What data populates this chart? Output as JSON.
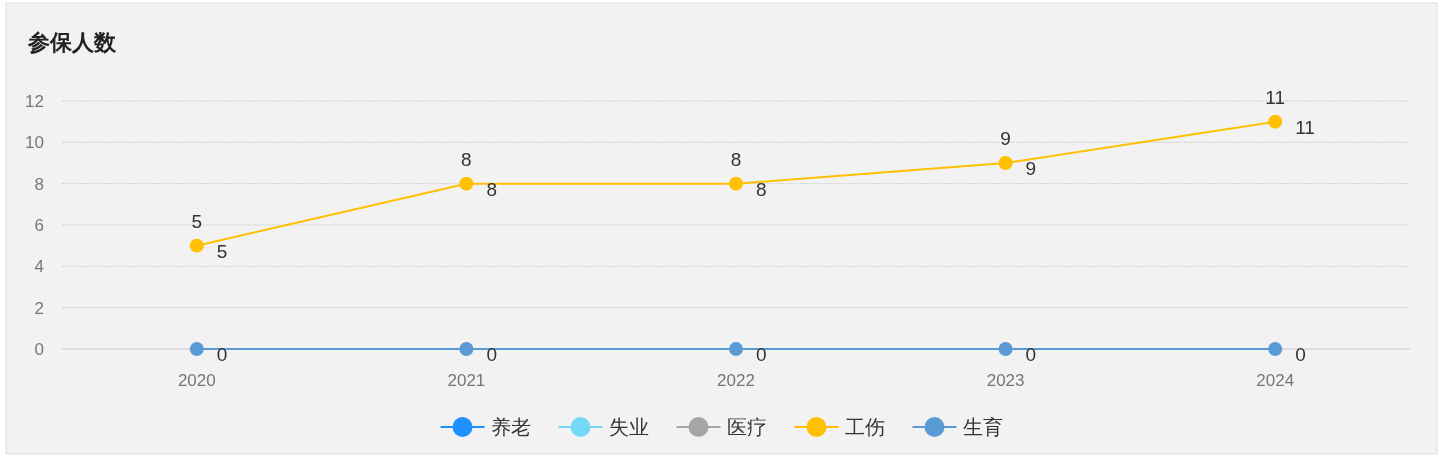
{
  "chart_data": {
    "type": "line",
    "title": "参保人数",
    "categories": [
      "2020",
      "2021",
      "2022",
      "2023",
      "2024"
    ],
    "series": [
      {
        "name": "养老",
        "color": "#1e90ff",
        "values": [
          null,
          null,
          null,
          null,
          null
        ]
      },
      {
        "name": "失业",
        "color": "#73d9f7",
        "values": [
          null,
          null,
          null,
          null,
          null
        ]
      },
      {
        "name": "医疗",
        "color": "#a5a5a5",
        "values": [
          null,
          null,
          null,
          null,
          null
        ]
      },
      {
        "name": "工伤",
        "color": "#ffc000",
        "values": [
          5,
          8,
          8,
          9,
          11
        ],
        "value_labels": [
          "5",
          "8",
          "8",
          "9",
          "11"
        ]
      },
      {
        "name": "生育",
        "color": "#5b9bd5",
        "values": [
          0,
          0,
          0,
          0,
          0
        ],
        "value_labels": [
          "0",
          "0",
          "0",
          "0",
          "0"
        ]
      }
    ],
    "annotations": [
      {
        "text": "5",
        "x": "2020",
        "y": 5
      },
      {
        "text": "8",
        "x": "2021",
        "y": 8
      },
      {
        "text": "8",
        "x": "2022",
        "y": 8
      },
      {
        "text": "9",
        "x": "2023",
        "y": 9
      },
      {
        "text": "11",
        "x": "2024",
        "y": 11
      }
    ],
    "ylim": [
      0,
      12
    ],
    "yticks": [
      0,
      2,
      4,
      6,
      8,
      10,
      12
    ],
    "grid": "y",
    "legend": "bottom",
    "marker": "circle",
    "line_style": "solid"
  }
}
